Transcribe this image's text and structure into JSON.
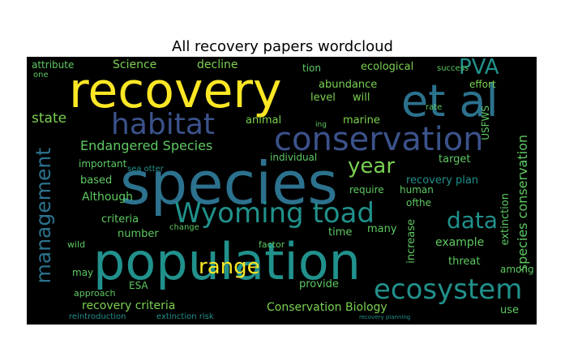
{
  "title": "All recovery papers wordcloud",
  "words": {
    "recovery": "recovery",
    "et_al": "et al",
    "species": "species",
    "population": "population",
    "conservation": "conservation",
    "habitat": "habitat",
    "wyoming_toad": "Wyoming toad",
    "ecosystem": "ecosystem",
    "management": "management",
    "pva": "PVA",
    "data": "data",
    "range": "range",
    "year": "year",
    "endangered_species": "Endangered Species",
    "species_conservation": "species conservation",
    "recovery_criteria": "recovery criteria",
    "conservation_biology": "Conservation Biology",
    "recovery_plan": "recovery plan",
    "abundance": "abundance",
    "level": "level",
    "will": "will",
    "state": "state",
    "animal": "animal",
    "marine": "marine",
    "science": "Science",
    "decline": "decline",
    "ecological": "ecological",
    "attribute": "attribute",
    "effort": "effort",
    "usfws": "USFWS",
    "individual": "individual",
    "important": "important",
    "target": "target",
    "based": "based",
    "although": "Although",
    "require": "require",
    "human": "human",
    "ofthe": "ofthe",
    "criteria": "criteria",
    "number": "number",
    "time": "time",
    "many": "many",
    "example": "example",
    "extinction": "extinction",
    "increase": "increase",
    "threat": "threat",
    "factor": "factor",
    "may": "may",
    "esa": "ESA",
    "provide": "provide",
    "among": "among",
    "use": "use",
    "approach": "approach",
    "wild": "wild",
    "change": "change",
    "success": "success",
    "reintroduction": "reintroduction",
    "extinction_risk": "extinction risk",
    "sea_otter": "sea otter",
    "one": "one",
    "tion": "tion",
    "rate": "rate",
    "ing": "ing",
    "recovery_planning": "recovery planning"
  },
  "colors": {
    "yellow": "#fde725",
    "teal": "#21918c",
    "blue": "#3b528b",
    "green": "#5ec962",
    "light_green": "#7ad151",
    "purple": "#472d7b",
    "cyan": "#2c728e",
    "dark": "#440154"
  }
}
